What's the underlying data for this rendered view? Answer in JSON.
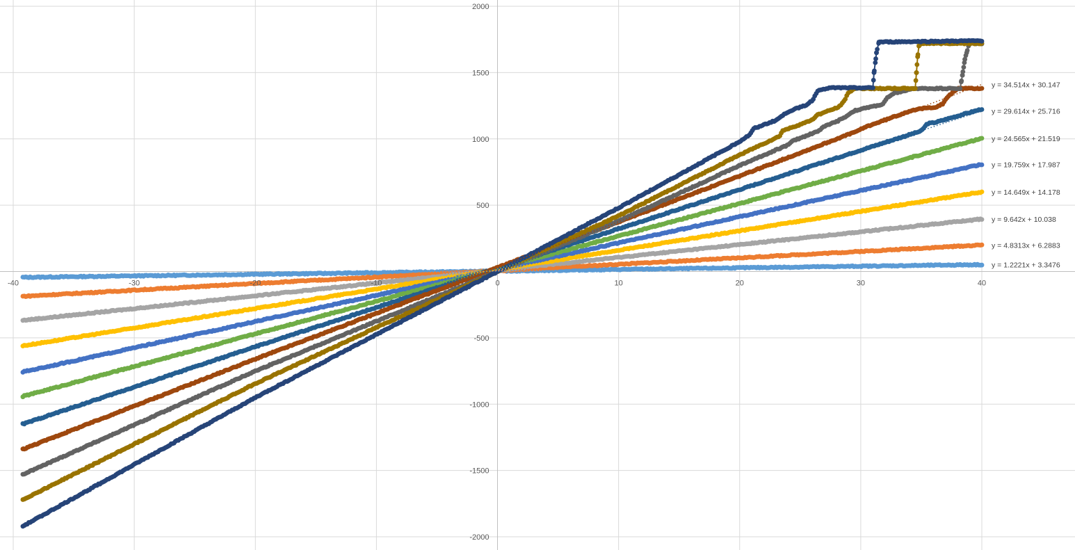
{
  "chart_data": {
    "type": "scatter",
    "title": "",
    "xlabel": "",
    "ylabel": "",
    "xlim": [
      -40,
      40
    ],
    "ylim": [
      -2000,
      2000
    ],
    "x_ticks": [
      "-40",
      "-30",
      "-20",
      "-10",
      "0",
      "10",
      "20",
      "30",
      "40"
    ],
    "y_ticks": [
      "2000",
      "1500",
      "1000",
      "500",
      "0",
      "-500",
      "-1000",
      "-1500",
      "-2000"
    ],
    "grid": true,
    "legend": "none",
    "series": [
      {
        "color": "#5b9bd5",
        "slope": 1.2221,
        "intercept": 3.3476,
        "x_range": [
          -39.2,
          40
        ],
        "trendline_label": "y = 1.2221x + 3.3476",
        "points": [
          [
            -39.2,
            -44
          ],
          [
            -20,
            -21
          ],
          [
            0,
            3
          ],
          [
            20,
            28
          ],
          [
            40,
            52
          ]
        ]
      },
      {
        "color": "#ed7d31",
        "slope": 4.8313,
        "intercept": 6.2883,
        "x_range": [
          -39.2,
          40
        ],
        "trendline_label": "y = 4.8313x + 6.2883",
        "points": [
          [
            -39.2,
            -187
          ],
          [
            -20,
            -90
          ],
          [
            0,
            6
          ],
          [
            20,
            103
          ],
          [
            40,
            200
          ]
        ]
      },
      {
        "color": "#a5a5a5",
        "slope": 9.642,
        "intercept": 10.038,
        "x_range": [
          -39.2,
          40
        ],
        "trendline_label": "y = 9.642x + 10.038",
        "points": [
          [
            -39.2,
            -368
          ],
          [
            -20,
            -183
          ],
          [
            0,
            10
          ],
          [
            20,
            203
          ],
          [
            40,
            396
          ]
        ]
      },
      {
        "color": "#ffc000",
        "slope": 14.649,
        "intercept": 14.178,
        "x_range": [
          -39.2,
          40
        ],
        "trendline_label": "y = 14.649x + 14.178",
        "points": [
          [
            -39.2,
            -560
          ],
          [
            -20,
            -279
          ],
          [
            0,
            14
          ],
          [
            20,
            307
          ],
          [
            40,
            600
          ]
        ]
      },
      {
        "color": "#4472c4",
        "slope": 19.759,
        "intercept": 17.987,
        "x_range": [
          -39.2,
          40
        ],
        "trendline_label": "y = 19.759x + 17.987",
        "points": [
          [
            -39.2,
            -757
          ],
          [
            -20,
            -377
          ],
          [
            0,
            18
          ],
          [
            20,
            413
          ],
          [
            40,
            808
          ]
        ]
      },
      {
        "color": "#70ad47",
        "slope": 24.565,
        "intercept": 21.519,
        "x_range": [
          -39.2,
          40
        ],
        "trendline_label": "y = 24.565x + 21.519",
        "points": [
          [
            -39.2,
            -941
          ],
          [
            -20,
            -470
          ],
          [
            0,
            22
          ],
          [
            20,
            513
          ],
          [
            40,
            1004
          ]
        ]
      },
      {
        "color": "#255e91",
        "slope": 29.614,
        "intercept": 25.716,
        "x_range": [
          -39.2,
          40
        ],
        "trendline_label": "y = 29.614x + 25.716",
        "points": [
          [
            -39.2,
            -1150
          ],
          [
            -20,
            -567
          ],
          [
            0,
            26
          ],
          [
            20,
            618
          ],
          [
            30,
            915
          ],
          [
            35,
            1060
          ],
          [
            35.5,
            1115
          ],
          [
            36.2,
            1125
          ],
          [
            37.5,
            1160
          ],
          [
            40,
            1225
          ]
        ]
      },
      {
        "color": "#9e480e",
        "slope": 34.514,
        "intercept": 30.147,
        "x_range": [
          -39.2,
          40
        ],
        "trendline_label": "y = 34.514x + 30.147",
        "points": [
          [
            -39.2,
            -1340
          ],
          [
            -20,
            -660
          ],
          [
            0,
            30
          ],
          [
            20,
            720
          ],
          [
            29.8,
            1062
          ],
          [
            30.4,
            1090
          ],
          [
            33,
            1175
          ],
          [
            34.2,
            1215
          ],
          [
            35.2,
            1230
          ],
          [
            36.2,
            1240
          ],
          [
            36.8,
            1265
          ],
          [
            37.2,
            1320
          ],
          [
            38,
            1380
          ],
          [
            40,
            1380
          ]
        ]
      },
      {
        "color": "#636363",
        "x_range": [
          -39.2,
          40
        ],
        "points": [
          [
            -39.2,
            -1530
          ],
          [
            -20,
            -750
          ],
          [
            0,
            0
          ],
          [
            10,
            380
          ],
          [
            20,
            800
          ],
          [
            24,
            955
          ],
          [
            24.4,
            985
          ],
          [
            26.5,
            1060
          ],
          [
            27,
            1095
          ],
          [
            28,
            1130
          ],
          [
            28.8,
            1170
          ],
          [
            29.4,
            1210
          ],
          [
            30.5,
            1235
          ],
          [
            31.8,
            1260
          ],
          [
            32.2,
            1310
          ],
          [
            32.8,
            1345
          ],
          [
            33.5,
            1360
          ],
          [
            34.5,
            1380
          ],
          [
            38.2,
            1380
          ],
          [
            38.4,
            1480
          ],
          [
            38.6,
            1600
          ],
          [
            38.9,
            1700
          ],
          [
            39,
            1720
          ],
          [
            40,
            1720
          ]
        ]
      },
      {
        "color": "#997300",
        "x_range": [
          -39.2,
          40
        ],
        "points": [
          [
            -39.2,
            -1720
          ],
          [
            -20,
            -845
          ],
          [
            0,
            0
          ],
          [
            10,
            420
          ],
          [
            20,
            880
          ],
          [
            23.3,
            1020
          ],
          [
            23.5,
            1060
          ],
          [
            25.5,
            1125
          ],
          [
            26,
            1145
          ],
          [
            26.4,
            1180
          ],
          [
            27.6,
            1220
          ],
          [
            28.2,
            1240
          ],
          [
            28.7,
            1300
          ],
          [
            29,
            1350
          ],
          [
            29.5,
            1380
          ],
          [
            34.5,
            1380
          ],
          [
            34.6,
            1500
          ],
          [
            34.7,
            1620
          ],
          [
            34.8,
            1700
          ],
          [
            35,
            1720
          ],
          [
            40,
            1720
          ]
        ]
      },
      {
        "color": "#264478",
        "x_range": [
          -39.2,
          40
        ],
        "points": [
          [
            -39.2,
            -1920
          ],
          [
            -20,
            -950
          ],
          [
            0,
            0
          ],
          [
            10,
            480
          ],
          [
            20,
            980
          ],
          [
            20.8,
            1030
          ],
          [
            21.2,
            1080
          ],
          [
            23,
            1140
          ],
          [
            24,
            1205
          ],
          [
            25,
            1240
          ],
          [
            25.5,
            1255
          ],
          [
            26,
            1290
          ],
          [
            26.5,
            1370
          ],
          [
            27.5,
            1385
          ],
          [
            31,
            1385
          ],
          [
            31.1,
            1500
          ],
          [
            31.3,
            1650
          ],
          [
            31.5,
            1730
          ],
          [
            40,
            1740
          ]
        ]
      }
    ]
  },
  "chart_colors": {
    "grid": "#d9d9d9",
    "tick_text": "#595959",
    "background": "#ffffff"
  }
}
